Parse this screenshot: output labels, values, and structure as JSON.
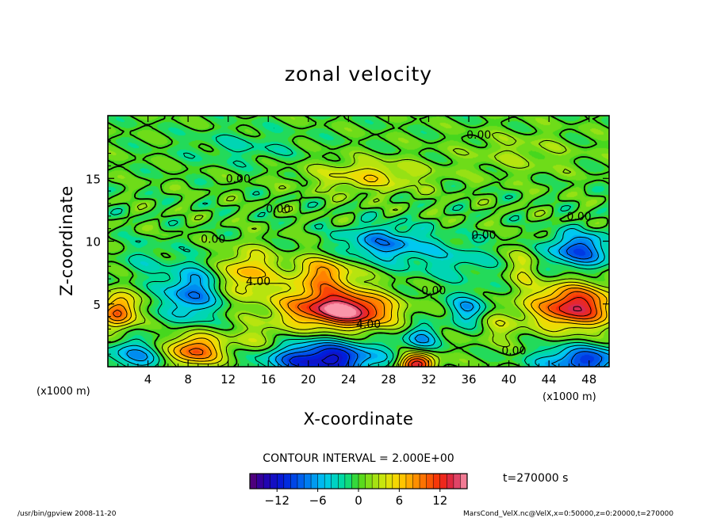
{
  "chart_data": {
    "type": "heatmap",
    "title": "zonal velocity",
    "xlabel": "X-coordinate",
    "ylabel": "Z-coordinate",
    "x_unit_left": "(x1000 m)",
    "x_unit_right": "(x1000 m)",
    "xlim": [
      0,
      50
    ],
    "ylim": [
      0,
      20
    ],
    "x_ticks": [
      4,
      8,
      12,
      16,
      20,
      24,
      28,
      32,
      36,
      40,
      44,
      48
    ],
    "y_ticks": [
      5,
      10,
      15
    ],
    "contour_interval_text": "CONTOUR INTERVAL = 2.000E+00",
    "time_text": "t=270000 s",
    "colorbar": {
      "range": [
        -16,
        16
      ],
      "ticks": [
        -12,
        -6,
        0,
        6,
        12
      ],
      "tick_labels": [
        "−12",
        "−6",
        "0",
        "6",
        "12"
      ]
    },
    "contour_labels": [
      {
        "x": 37,
        "y": 18.5,
        "text": "0.00"
      },
      {
        "x": 13,
        "y": 15,
        "text": "0.00"
      },
      {
        "x": 17,
        "y": 12.6,
        "text": "0.00"
      },
      {
        "x": 47,
        "y": 12,
        "text": "0.00"
      },
      {
        "x": 10.5,
        "y": 10.2,
        "text": "0.00"
      },
      {
        "x": 37.5,
        "y": 10.5,
        "text": "0.00"
      },
      {
        "x": 15,
        "y": 6.8,
        "text": "4.00"
      },
      {
        "x": 32.5,
        "y": 6.1,
        "text": "0.00"
      },
      {
        "x": 26,
        "y": 3.4,
        "text": "4.00"
      },
      {
        "x": 40.5,
        "y": 1.3,
        "text": "0.00"
      }
    ],
    "field_features": [
      {
        "x": 22,
        "y": 4.7,
        "value": 13,
        "sx": 3.4,
        "sy": 1.1
      },
      {
        "x": 25.5,
        "y": 4.3,
        "value": 7,
        "sx": 2.5,
        "sy": 0.9
      },
      {
        "x": 46.5,
        "y": 4.8,
        "value": 14,
        "sx": 2.8,
        "sy": 1.2
      },
      {
        "x": 1.0,
        "y": 4.4,
        "value": 11,
        "sx": 1.2,
        "sy": 1.0
      },
      {
        "x": 8.5,
        "y": 1.3,
        "value": 11,
        "sx": 2.0,
        "sy": 0.9
      },
      {
        "x": 30.8,
        "y": 0.2,
        "value": 14,
        "sx": 1.3,
        "sy": 0.6
      },
      {
        "x": 14,
        "y": 7.5,
        "value": 7,
        "sx": 1.8,
        "sy": 1.3
      },
      {
        "x": 21.5,
        "y": 7.4,
        "value": 8,
        "sx": 2.2,
        "sy": 1.0
      },
      {
        "x": 26,
        "y": 15.2,
        "value": 5,
        "sx": 4.0,
        "sy": 0.9
      },
      {
        "x": 41.5,
        "y": 8.0,
        "value": 4,
        "sx": 1.0,
        "sy": 1.2
      },
      {
        "x": 8.3,
        "y": 5.8,
        "value": -8,
        "sx": 1.8,
        "sy": 1.5
      },
      {
        "x": 21.5,
        "y": 0.6,
        "value": -13,
        "sx": 3.8,
        "sy": 1.0
      },
      {
        "x": 3.0,
        "y": 0.9,
        "value": -6,
        "sx": 2.3,
        "sy": 0.9
      },
      {
        "x": 47.5,
        "y": 0.5,
        "value": -10,
        "sx": 3.0,
        "sy": 0.8
      },
      {
        "x": 36.0,
        "y": 4.6,
        "value": -6,
        "sx": 1.4,
        "sy": 0.9
      },
      {
        "x": 31.2,
        "y": 2.3,
        "value": -6,
        "sx": 1.2,
        "sy": 0.7
      },
      {
        "x": 27.5,
        "y": 9.8,
        "value": -7,
        "sx": 3.0,
        "sy": 1.0
      },
      {
        "x": 47.0,
        "y": 9.3,
        "value": -9,
        "sx": 2.3,
        "sy": 1.0
      },
      {
        "x": 39.0,
        "y": 3.3,
        "value": 3,
        "sx": 1.6,
        "sy": 1.0
      },
      {
        "x": 15.0,
        "y": 2.2,
        "value": 3,
        "sx": 2.2,
        "sy": 0.9
      },
      {
        "x": 34.5,
        "y": 8.5,
        "value": -3,
        "sx": 3.0,
        "sy": 1.2
      },
      {
        "x": 3.8,
        "y": 8.4,
        "value": -2,
        "sx": 1.8,
        "sy": 1.2
      },
      {
        "x": 13.5,
        "y": 17.5,
        "value": -2,
        "sx": 4.0,
        "sy": 1.0
      },
      {
        "x": 41.0,
        "y": 17.0,
        "value": 2,
        "sx": 4.0,
        "sy": 1.2
      }
    ]
  },
  "footer": {
    "left": "/usr/bin/gpview   2008-11-20",
    "right": "MarsCond_VelX.nc@VelX,x=0:50000,z=0:20000,t=270000"
  }
}
